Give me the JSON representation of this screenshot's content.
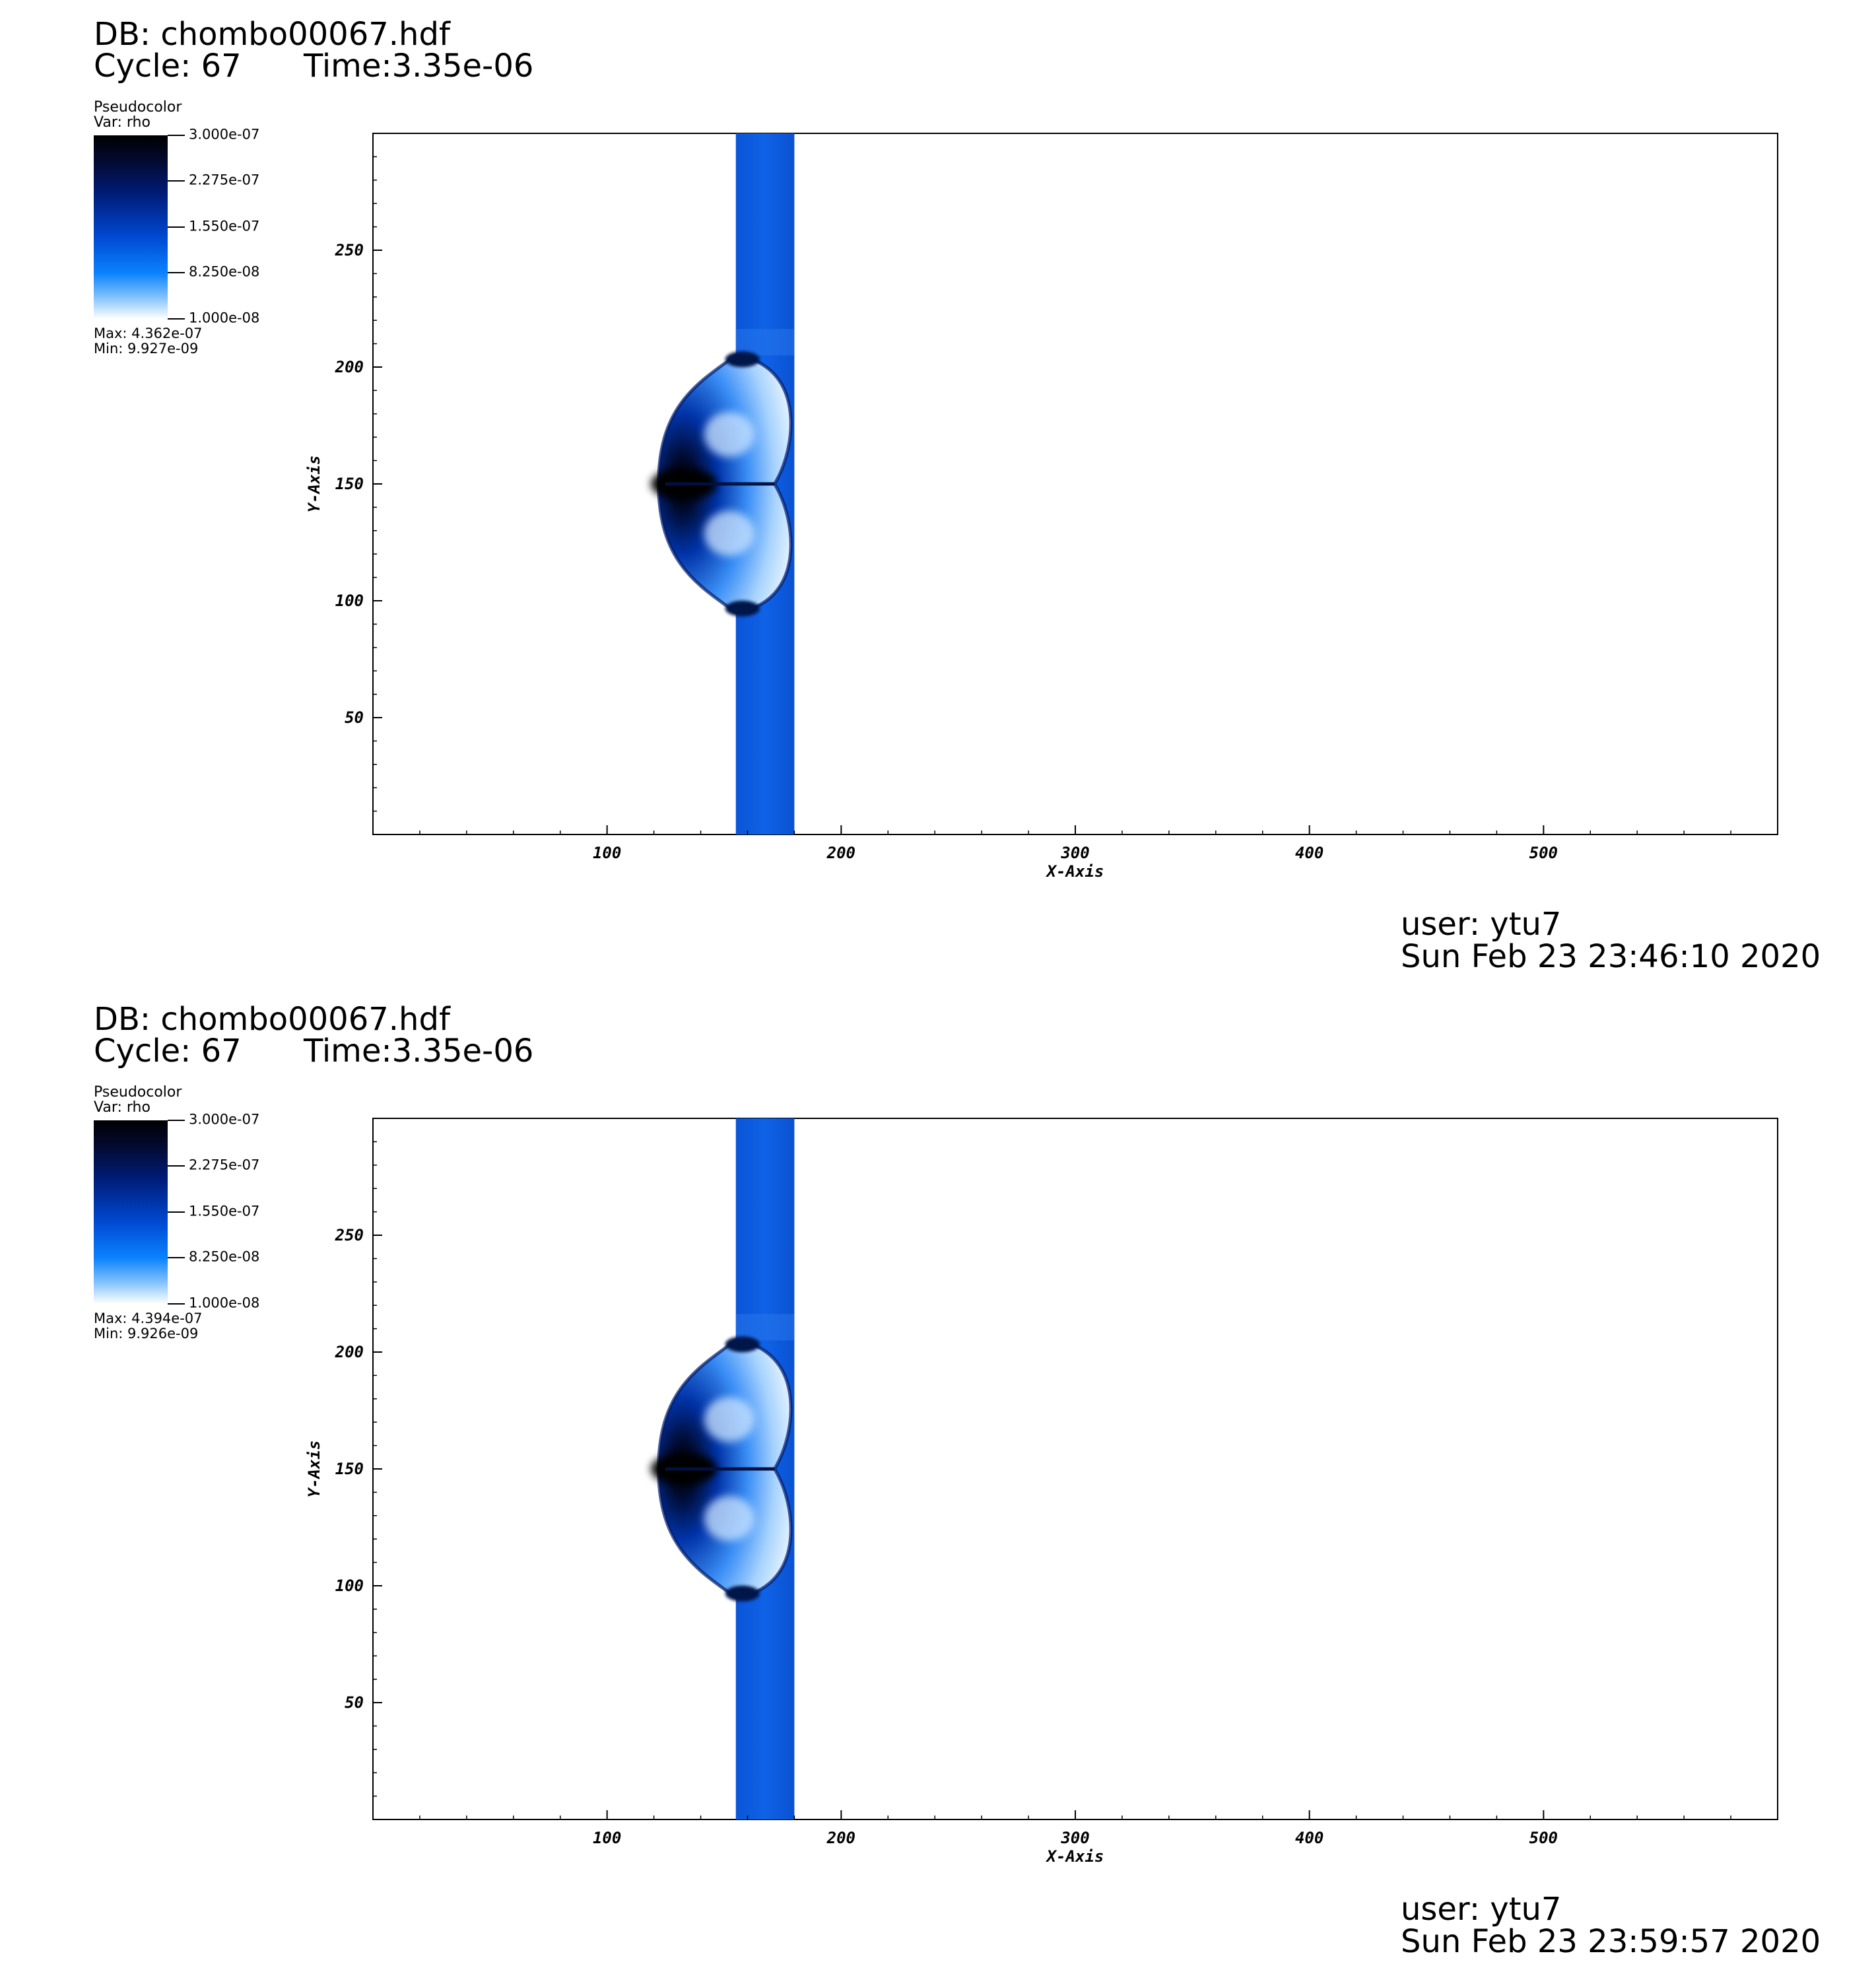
{
  "panels": [
    {
      "db_label": "DB: chombo00067.hdf",
      "cycle_label": "Cycle: 67",
      "time_label": "Time:3.35e-06",
      "legend": {
        "plot_type": "Pseudocolor",
        "var_label": "Var: rho",
        "ticks": [
          "3.000e-07",
          "2.275e-07",
          "1.550e-07",
          "8.250e-08",
          "1.000e-08"
        ],
        "max_label": "Max:  4.362e-07",
        "min_label": "Min:  9.927e-09"
      },
      "user_label": "user: ytu7",
      "date_label": "Sun Feb 23 23:46:10 2020"
    },
    {
      "db_label": "DB: chombo00067.hdf",
      "cycle_label": "Cycle: 67",
      "time_label": "Time:3.35e-06",
      "legend": {
        "plot_type": "Pseudocolor",
        "var_label": "Var: rho",
        "ticks": [
          "3.000e-07",
          "2.275e-07",
          "1.550e-07",
          "8.250e-08",
          "1.000e-08"
        ],
        "max_label": "Max:  4.394e-07",
        "min_label": "Min:  9.926e-09"
      },
      "user_label": "user: ytu7",
      "date_label": "Sun Feb 23 23:59:57 2020"
    }
  ],
  "chart_data": [
    {
      "type": "heatmap",
      "variable": "rho",
      "color_range": [
        1e-08,
        3e-07
      ],
      "colormap": [
        "#ffffff",
        "#0a82ff",
        "#0048d0",
        "#001c78",
        "#000000"
      ],
      "xlabel": "X-Axis",
      "ylabel": "Y-Axis",
      "xlim": [
        0,
        600
      ],
      "ylim": [
        0,
        300
      ],
      "xticks": [
        100,
        200,
        300,
        400,
        500
      ],
      "yticks": [
        50,
        100,
        150,
        200,
        250
      ],
      "features": {
        "column_x_range": [
          155,
          180
        ],
        "bow_region_y_range": [
          95,
          205
        ],
        "bow_leftmost_x": 122,
        "densest_point": [
          130,
          150
        ]
      }
    },
    {
      "type": "heatmap",
      "variable": "rho",
      "color_range": [
        1e-08,
        3e-07
      ],
      "colormap": [
        "#ffffff",
        "#0a82ff",
        "#0048d0",
        "#001c78",
        "#000000"
      ],
      "xlabel": "X-Axis",
      "ylabel": "Y-Axis",
      "xlim": [
        0,
        600
      ],
      "ylim": [
        0,
        300
      ],
      "xticks": [
        100,
        200,
        300,
        400,
        500
      ],
      "yticks": [
        50,
        100,
        150,
        200,
        250
      ],
      "features": {
        "column_x_range": [
          155,
          180
        ],
        "bow_region_y_range": [
          95,
          205
        ],
        "bow_leftmost_x": 122,
        "densest_point": [
          130,
          150
        ]
      }
    }
  ]
}
